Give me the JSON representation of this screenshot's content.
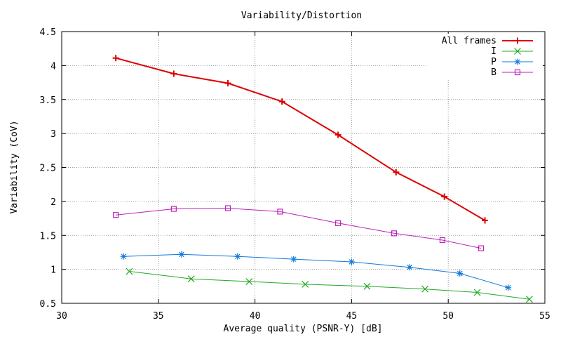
{
  "chart_data": {
    "type": "line",
    "title": "Variability/Distortion",
    "xlabel": "Average quality (PSNR-Y) [dB]",
    "ylabel": "Variability (CoV)",
    "xlim": [
      30,
      55
    ],
    "ylim": [
      0.5,
      4.5
    ],
    "xticks": [
      30,
      35,
      40,
      45,
      50,
      55
    ],
    "yticks": [
      0.5,
      1,
      1.5,
      2,
      2.5,
      3,
      3.5,
      4,
      4.5
    ],
    "xtick_labels": [
      "30",
      "35",
      "40",
      "45",
      "50",
      "55"
    ],
    "ytick_labels": [
      "0.5",
      "1",
      "1.5",
      "2",
      "2.5",
      "3",
      "3.5",
      "4",
      "4.5"
    ],
    "grid": true,
    "legend_position": "top-right",
    "series": [
      {
        "name": "All frames",
        "color": "#dd0000",
        "marker": "plus",
        "line_width": 2,
        "x": [
          32.8,
          35.8,
          38.6,
          41.4,
          44.3,
          47.3,
          49.8,
          51.9
        ],
        "y": [
          4.11,
          3.88,
          3.74,
          3.47,
          2.98,
          2.43,
          2.07,
          1.72
        ]
      },
      {
        "name": "I",
        "color": "#22aa22",
        "marker": "x",
        "line_width": 1,
        "x": [
          33.5,
          36.7,
          39.7,
          42.6,
          45.8,
          48.8,
          51.5,
          54.2
        ],
        "y": [
          0.97,
          0.86,
          0.82,
          0.78,
          0.75,
          0.71,
          0.66,
          0.56
        ]
      },
      {
        "name": "P",
        "color": "#1177dd",
        "marker": "star",
        "line_width": 1,
        "x": [
          33.2,
          36.2,
          39.1,
          42.0,
          45.0,
          48.0,
          50.6,
          53.1
        ],
        "y": [
          1.19,
          1.22,
          1.19,
          1.15,
          1.11,
          1.03,
          0.94,
          0.73
        ]
      },
      {
        "name": "B",
        "color": "#bb22bb",
        "marker": "square",
        "line_width": 1,
        "x": [
          32.8,
          35.8,
          38.6,
          41.3,
          44.3,
          47.2,
          49.7,
          51.7
        ],
        "y": [
          1.8,
          1.89,
          1.9,
          1.85,
          1.68,
          1.53,
          1.43,
          1.31
        ]
      }
    ]
  }
}
